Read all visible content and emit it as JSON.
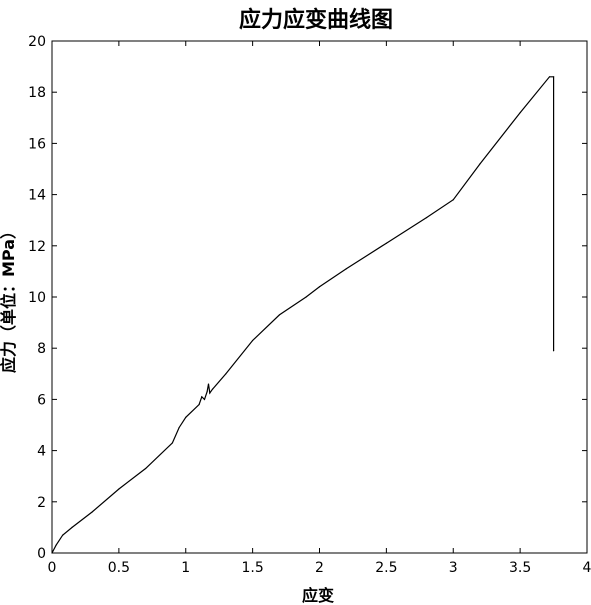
{
  "chart_data": {
    "type": "line",
    "title": "应力应变曲线图",
    "xlabel": "应变",
    "ylabel": "应力（单位：MPa）",
    "xlim": [
      0,
      4
    ],
    "ylim": [
      0,
      20
    ],
    "x_ticks": [
      0,
      0.5,
      1,
      1.5,
      2,
      2.5,
      3,
      3.5,
      4
    ],
    "x_tick_labels": [
      "0",
      "0.5",
      "1",
      "1.5",
      "2",
      "2.5",
      "3",
      "3.5",
      "4"
    ],
    "y_ticks": [
      0,
      2,
      4,
      6,
      8,
      10,
      12,
      14,
      16,
      18,
      20
    ],
    "y_tick_labels": [
      "0",
      "2",
      "4",
      "6",
      "8",
      "10",
      "12",
      "14",
      "16",
      "18",
      "20"
    ],
    "grid": false,
    "legend": "none",
    "line_color": "#000000",
    "series": [
      {
        "x": [
          0,
          0.03,
          0.08,
          0.15,
          0.3,
          0.5,
          0.7,
          0.9,
          0.95,
          1.0,
          1.1,
          1.12,
          1.14,
          1.16,
          1.17,
          1.18,
          1.2,
          1.3,
          1.5,
          1.7,
          1.9,
          2.0,
          2.2,
          2.5,
          2.8,
          3.0,
          3.2,
          3.5,
          3.72,
          3.75,
          3.75
        ],
        "y": [
          0,
          0.3,
          0.7,
          1.0,
          1.6,
          2.5,
          3.3,
          4.3,
          4.9,
          5.3,
          5.8,
          6.1,
          6.0,
          6.3,
          6.6,
          6.25,
          6.4,
          7.0,
          8.3,
          9.3,
          10.0,
          10.4,
          11.1,
          12.1,
          13.1,
          13.8,
          15.2,
          17.2,
          18.6,
          18.6,
          7.9
        ]
      }
    ]
  }
}
